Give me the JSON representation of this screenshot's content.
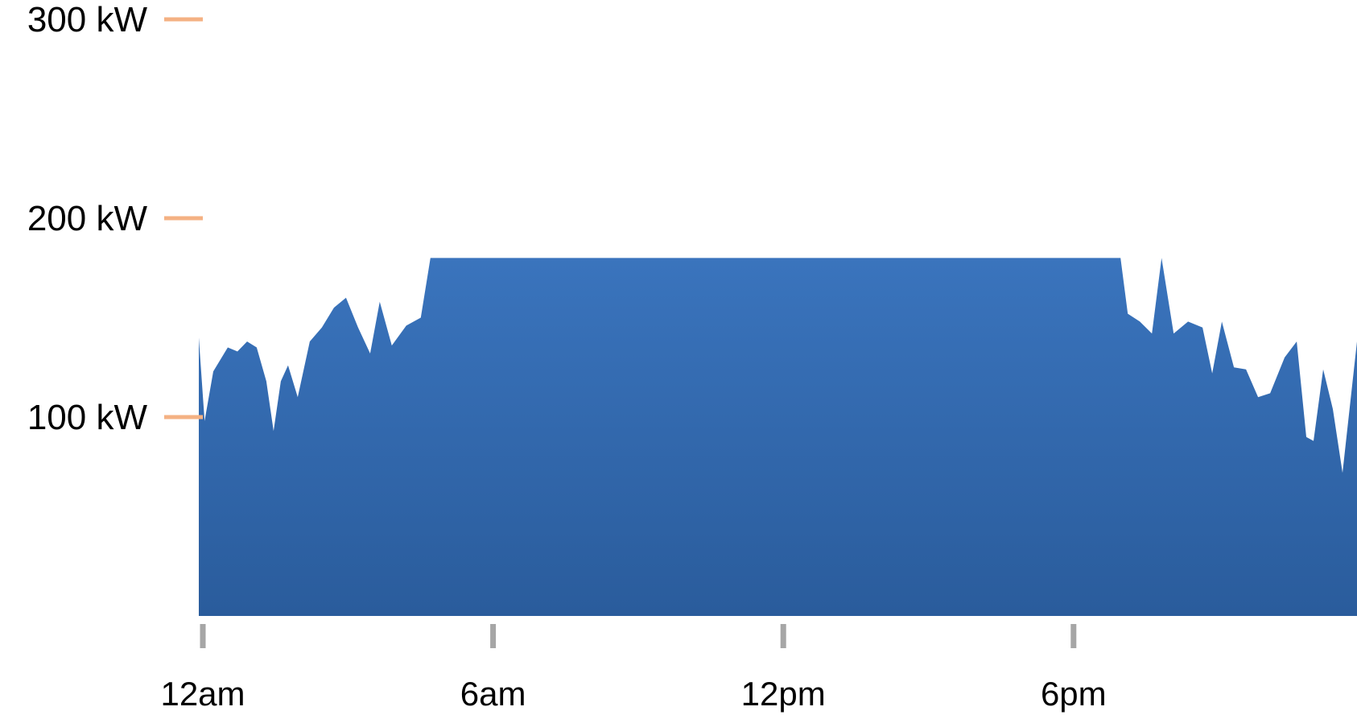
{
  "chart_data": {
    "type": "area",
    "title": "",
    "xlabel": "",
    "ylabel": "",
    "y_unit": "kW",
    "ylim": [
      0,
      300
    ],
    "y_ticks": [
      {
        "value": 300,
        "label": "300 kW"
      },
      {
        "value": 200,
        "label": "200 kW"
      },
      {
        "value": 100,
        "label": "100 kW"
      }
    ],
    "xlim": [
      0,
      24
    ],
    "x_ticks": [
      {
        "value": 0,
        "label": "12am"
      },
      {
        "value": 6,
        "label": "6am"
      },
      {
        "value": 12,
        "label": "12pm"
      },
      {
        "value": 18,
        "label": "6pm"
      }
    ],
    "series": [
      {
        "color": "#3066b0",
        "points": [
          [
            0.0,
            140
          ],
          [
            0.12,
            98
          ],
          [
            0.3,
            123
          ],
          [
            0.6,
            135
          ],
          [
            0.8,
            133
          ],
          [
            1.0,
            138
          ],
          [
            1.2,
            135
          ],
          [
            1.4,
            118
          ],
          [
            1.55,
            93
          ],
          [
            1.7,
            118
          ],
          [
            1.85,
            126
          ],
          [
            2.05,
            110
          ],
          [
            2.3,
            138
          ],
          [
            2.55,
            145
          ],
          [
            2.8,
            155
          ],
          [
            3.05,
            160
          ],
          [
            3.3,
            145
          ],
          [
            3.55,
            132
          ],
          [
            3.75,
            158
          ],
          [
            4.0,
            136
          ],
          [
            4.3,
            146
          ],
          [
            4.6,
            150
          ],
          [
            4.8,
            180
          ],
          [
            12.0,
            180
          ],
          [
            19.1,
            180
          ],
          [
            19.25,
            152
          ],
          [
            19.5,
            148
          ],
          [
            19.75,
            142
          ],
          [
            19.95,
            180
          ],
          [
            20.2,
            142
          ],
          [
            20.5,
            148
          ],
          [
            20.8,
            145
          ],
          [
            21.0,
            122
          ],
          [
            21.2,
            148
          ],
          [
            21.45,
            125
          ],
          [
            21.7,
            124
          ],
          [
            21.95,
            110
          ],
          [
            22.2,
            112
          ],
          [
            22.5,
            130
          ],
          [
            22.75,
            138
          ],
          [
            22.95,
            90
          ],
          [
            23.1,
            88
          ],
          [
            23.3,
            124
          ],
          [
            23.5,
            104
          ],
          [
            23.7,
            72
          ],
          [
            24.0,
            138
          ]
        ]
      }
    ]
  }
}
